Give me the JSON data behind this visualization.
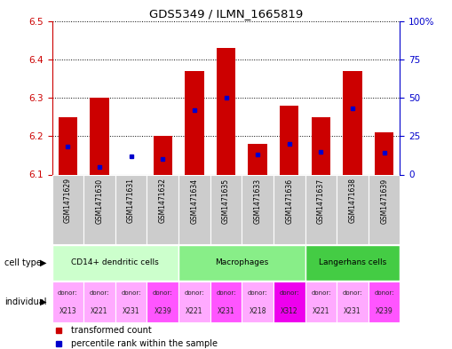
{
  "title": "GDS5349 / ILMN_1665819",
  "samples": [
    "GSM1471629",
    "GSM1471630",
    "GSM1471631",
    "GSM1471632",
    "GSM1471634",
    "GSM1471635",
    "GSM1471633",
    "GSM1471636",
    "GSM1471637",
    "GSM1471638",
    "GSM1471639"
  ],
  "transformed_counts": [
    6.25,
    6.3,
    6.1,
    6.2,
    6.37,
    6.43,
    6.18,
    6.28,
    6.25,
    6.37,
    6.21
  ],
  "percentile_ranks": [
    18,
    5,
    12,
    10,
    42,
    50,
    13,
    20,
    15,
    43,
    14
  ],
  "ylim_left": [
    6.1,
    6.5
  ],
  "ylim_right": [
    0,
    100
  ],
  "yticks_left": [
    6.1,
    6.2,
    6.3,
    6.4,
    6.5
  ],
  "yticks_right": [
    0,
    25,
    50,
    75,
    100
  ],
  "ytick_labels_right": [
    "0",
    "25",
    "50",
    "75",
    "100%"
  ],
  "bar_color": "#cc0000",
  "dot_color": "#0000cc",
  "cell_type_groups": [
    {
      "label": "CD14+ dendritic cells",
      "start": 0,
      "end": 4,
      "color": "#ccffcc"
    },
    {
      "label": "Macrophages",
      "start": 4,
      "end": 8,
      "color": "#88ee88"
    },
    {
      "label": "Langerhans cells",
      "start": 8,
      "end": 11,
      "color": "#44cc44"
    }
  ],
  "individuals": [
    {
      "donor": "X213",
      "color": "#ffaaff"
    },
    {
      "donor": "X221",
      "color": "#ffaaff"
    },
    {
      "donor": "X231",
      "color": "#ffaaff"
    },
    {
      "donor": "X239",
      "color": "#ff55ff"
    },
    {
      "donor": "X221",
      "color": "#ffaaff"
    },
    {
      "donor": "X231",
      "color": "#ff55ff"
    },
    {
      "donor": "X218",
      "color": "#ffaaff"
    },
    {
      "donor": "X312",
      "color": "#ee00ee"
    },
    {
      "donor": "X221",
      "color": "#ffaaff"
    },
    {
      "donor": "X231",
      "color": "#ffaaff"
    },
    {
      "donor": "X239",
      "color": "#ff55ff"
    }
  ],
  "ylabel_left_color": "#cc0000",
  "ylabel_right_color": "#0000cc",
  "legend_items": [
    {
      "label": "transformed count",
      "color": "#cc0000"
    },
    {
      "label": "percentile rank within the sample",
      "color": "#0000cc"
    }
  ],
  "base_value": 6.1,
  "sample_label_bg": "#cccccc",
  "left_label_cell_type": "cell type",
  "left_label_individual": "individual"
}
